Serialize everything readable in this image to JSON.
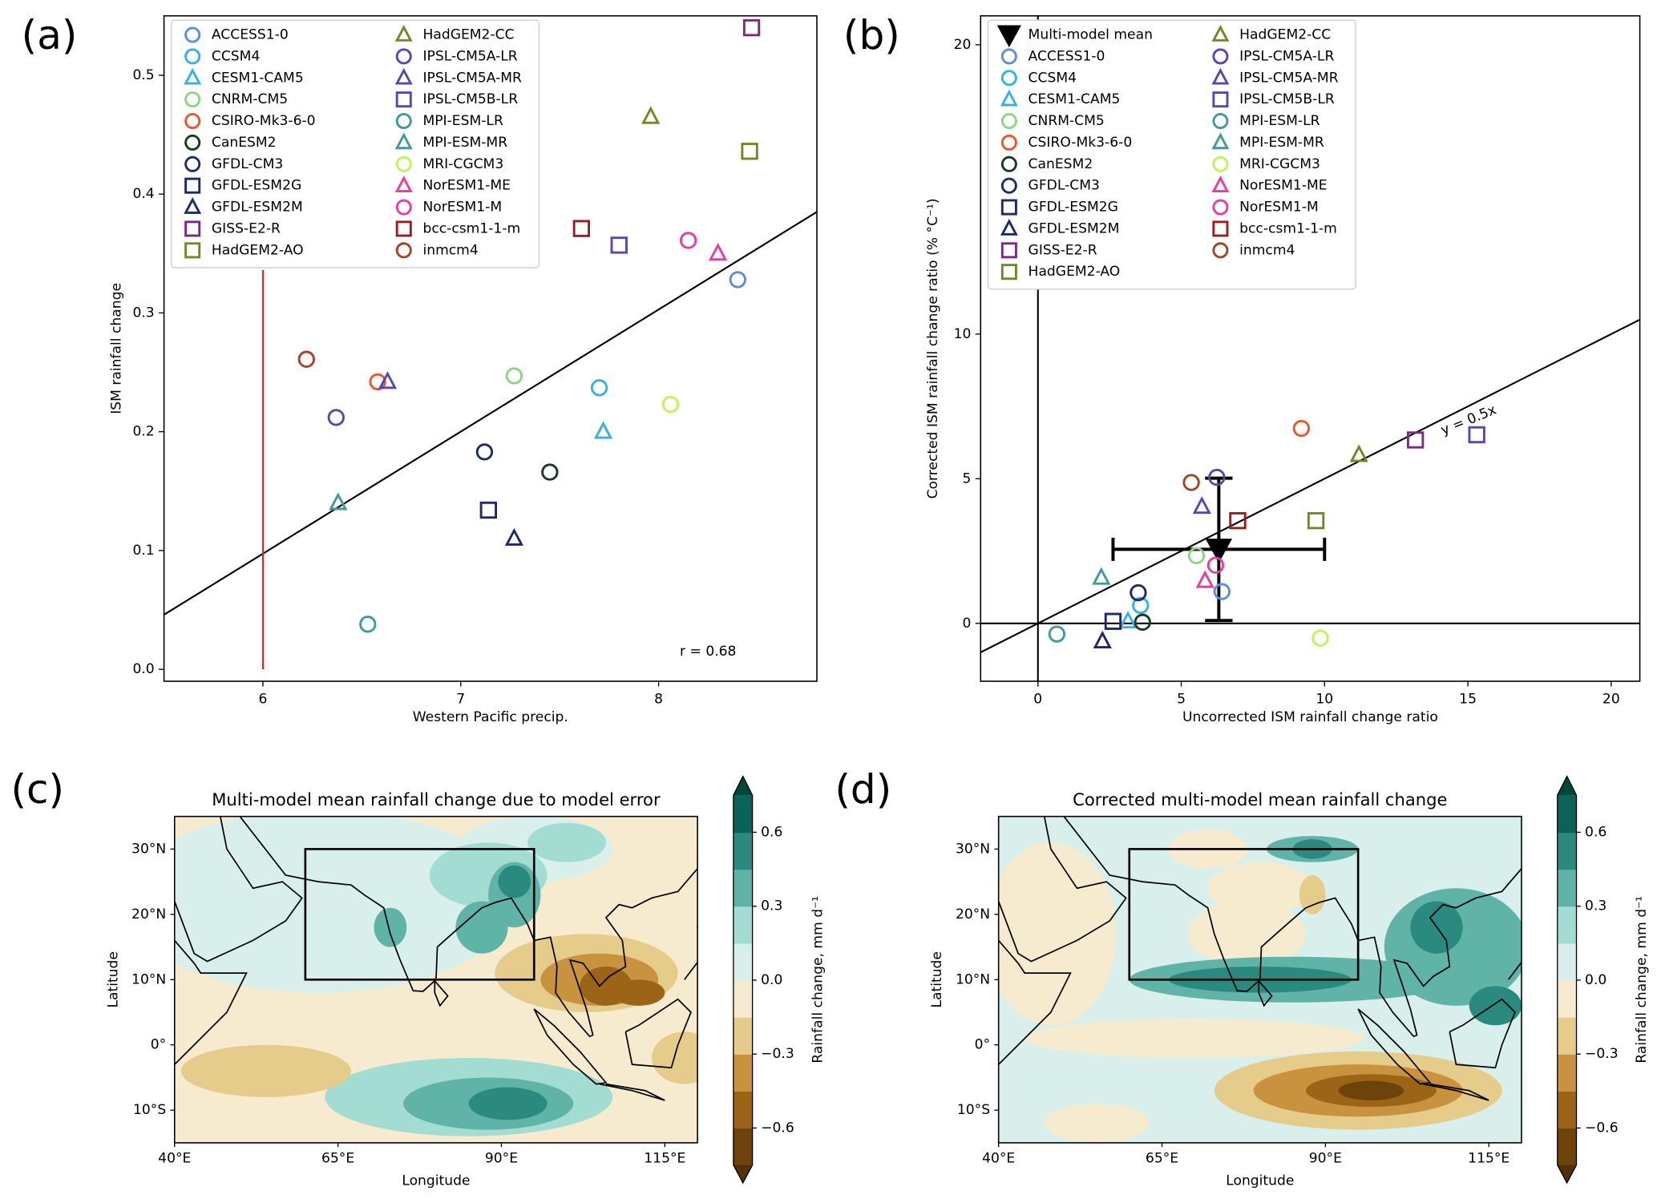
{
  "chart_data": [
    {
      "type": "scatter",
      "panel_label": "(a)",
      "xlabel": "Western Pacific precip.",
      "ylabel": "ISM rainfall change",
      "xlim": [
        5.5,
        8.8
      ],
      "ylim": [
        -0.01,
        0.55
      ],
      "xticks": [
        6,
        7,
        8
      ],
      "yticks": [
        {
          "value": 0,
          "label": "0.0"
        },
        0.1,
        0.2,
        0.3,
        0.4,
        0.5
      ],
      "legend": "upper left",
      "annotation": "r = 0.68",
      "fit_line": {
        "x": [
          5.5,
          8.8
        ],
        "values": [
          0.046,
          0.385
        ],
        "color": "#000000"
      },
      "vline": {
        "x": 6,
        "values": [
          0,
          0.336
        ],
        "color": "#e3241b"
      },
      "series": [
        {
          "name": "ACCESS1-0",
          "color": "#5b8dd9",
          "marker": "o",
          "x": [
            8.4
          ],
          "values": [
            0.328
          ]
        },
        {
          "name": "CCSM4",
          "color": "#33b2e6",
          "marker": "o",
          "x": [
            7.7
          ],
          "values": [
            0.237
          ]
        },
        {
          "name": "CESM1-CAM5",
          "color": "#33b2e6",
          "marker": "^",
          "x": [
            7.72
          ],
          "values": [
            0.2
          ]
        },
        {
          "name": "CNRM-CM5",
          "color": "#8dd67f",
          "marker": "o",
          "x": [
            7.27
          ],
          "values": [
            0.247
          ]
        },
        {
          "name": "CSIRO-Mk3-6-0",
          "color": "#ec5528",
          "marker": "o",
          "x": [
            6.58
          ],
          "values": [
            0.242
          ]
        },
        {
          "name": "CanESM2",
          "color": "#173a23",
          "marker": "o",
          "x": [
            7.45
          ],
          "values": [
            0.166
          ]
        },
        {
          "name": "GFDL-CM3",
          "color": "#1c2a6b",
          "marker": "o",
          "x": [
            7.12
          ],
          "values": [
            0.183
          ]
        },
        {
          "name": "GFDL-ESM2G",
          "color": "#1c2a6b",
          "marker": "s",
          "x": [
            7.14
          ],
          "values": [
            0.134
          ]
        },
        {
          "name": "GFDL-ESM2M",
          "color": "#1c2a6b",
          "marker": "^",
          "x": [
            7.27
          ],
          "values": [
            0.11
          ]
        },
        {
          "name": "GISS-E2-R",
          "color": "#7a2a80",
          "marker": "s",
          "x": [
            8.47
          ],
          "values": [
            0.54
          ]
        },
        {
          "name": "HadGEM2-AO",
          "color": "#6e8a23",
          "marker": "s",
          "x": [
            8.46
          ],
          "values": [
            0.436
          ]
        },
        {
          "name": "HadGEM2-CC",
          "color": "#6e8a23",
          "marker": "^",
          "x": [
            7.96
          ],
          "values": [
            0.465
          ]
        },
        {
          "name": "IPSL-CM5A-LR",
          "color": "#5a45b4",
          "marker": "o",
          "x": [
            6.37
          ],
          "values": [
            0.212
          ]
        },
        {
          "name": "IPSL-CM5A-MR",
          "color": "#5a45b4",
          "marker": "^",
          "x": [
            6.63
          ],
          "values": [
            0.242
          ]
        },
        {
          "name": "IPSL-CM5B-LR",
          "color": "#5a45b4",
          "marker": "s",
          "x": [
            7.8
          ],
          "values": [
            0.357
          ]
        },
        {
          "name": "MPI-ESM-LR",
          "color": "#3f9a98",
          "marker": "o",
          "x": [
            6.53
          ],
          "values": [
            0.038
          ]
        },
        {
          "name": "MPI-ESM-MR",
          "color": "#3f9a98",
          "marker": "^",
          "x": [
            6.38
          ],
          "values": [
            0.14
          ]
        },
        {
          "name": "MRI-CGCM3",
          "color": "#bff55b",
          "marker": "o",
          "x": [
            8.06
          ],
          "values": [
            0.223
          ]
        },
        {
          "name": "NorESM1-ME",
          "color": "#ec3aa6",
          "marker": "^",
          "x": [
            8.3
          ],
          "values": [
            0.35
          ]
        },
        {
          "name": "NorESM1-M",
          "color": "#ec3aa6",
          "marker": "o",
          "x": [
            8.15
          ],
          "values": [
            0.361
          ]
        },
        {
          "name": "bcc-csm1-1-m",
          "color": "#9b1c22",
          "marker": "s",
          "x": [
            7.61
          ],
          "values": [
            0.371
          ]
        },
        {
          "name": "inmcm4",
          "color": "#a3432a",
          "marker": "o",
          "x": [
            6.22
          ],
          "values": [
            0.261
          ]
        }
      ]
    },
    {
      "type": "scatter",
      "panel_label": "(b)",
      "xlabel": "Uncorrected ISM rainfall change ratio",
      "ylabel": "Corrected ISM rainfall change ratio (% °C⁻¹)",
      "xlim": [
        -2,
        21
      ],
      "ylim": [
        -2,
        21
      ],
      "xticks": [
        0,
        5,
        10,
        15,
        20
      ],
      "yticks": [
        0,
        5,
        10,
        20
      ],
      "legend": "upper left",
      "annotation": "y = 0.5x",
      "axhline": 0,
      "axvline": 0,
      "fit_line": {
        "x": [
          -2,
          21
        ],
        "values": [
          -1,
          10.5
        ],
        "color": "#000000"
      },
      "series": [
        {
          "name": "Multi-model mean",
          "color": "#000000",
          "marker": "v",
          "x": [
            6.31
          ],
          "values": [
            2.56
          ],
          "xerr": [
            3.69
          ],
          "yerr": [
            2.46
          ]
        },
        {
          "name": "ACCESS1-0",
          "color": "#5b8dd9",
          "marker": "o",
          "x": [
            6.42
          ],
          "values": [
            1.1
          ]
        },
        {
          "name": "CCSM4",
          "color": "#33b2e6",
          "marker": "o",
          "x": [
            3.58
          ],
          "values": [
            0.62
          ]
        },
        {
          "name": "CESM1-CAM5",
          "color": "#33b2e6",
          "marker": "^",
          "x": [
            3.14
          ],
          "values": [
            0.07
          ]
        },
        {
          "name": "CNRM-CM5",
          "color": "#8dd67f",
          "marker": "o",
          "x": [
            5.53
          ],
          "values": [
            2.34
          ]
        },
        {
          "name": "CSIRO-Mk3-6-0",
          "color": "#ec5528",
          "marker": "o",
          "x": [
            9.19
          ],
          "values": [
            6.74
          ]
        },
        {
          "name": "CanESM2",
          "color": "#173a23",
          "marker": "o",
          "x": [
            3.65
          ],
          "values": [
            0.04
          ]
        },
        {
          "name": "GFDL-CM3",
          "color": "#1c2a6b",
          "marker": "o",
          "x": [
            3.5
          ],
          "values": [
            1.06
          ]
        },
        {
          "name": "GFDL-ESM2G",
          "color": "#1c2a6b",
          "marker": "s",
          "x": [
            2.62
          ],
          "values": [
            0.07
          ]
        },
        {
          "name": "GFDL-ESM2M",
          "color": "#1c2a6b",
          "marker": "^",
          "x": [
            2.25
          ],
          "values": [
            -0.62
          ]
        },
        {
          "name": "GISS-E2-R",
          "color": "#7a2a80",
          "marker": "s",
          "x": [
            13.17
          ],
          "values": [
            6.34
          ]
        },
        {
          "name": "HadGEM2-AO",
          "color": "#6e8a23",
          "marker": "s",
          "x": [
            9.7
          ],
          "values": [
            3.55
          ]
        },
        {
          "name": "HadGEM2-CC",
          "color": "#6e8a23",
          "marker": "^",
          "x": [
            11.2
          ],
          "values": [
            5.82
          ]
        },
        {
          "name": "IPSL-CM5A-LR",
          "color": "#5a45b4",
          "marker": "o",
          "x": [
            6.24
          ],
          "values": [
            5.05
          ]
        },
        {
          "name": "IPSL-CM5A-MR",
          "color": "#5a45b4",
          "marker": "^",
          "x": [
            5.72
          ],
          "values": [
            4.03
          ]
        },
        {
          "name": "IPSL-CM5B-LR",
          "color": "#5a45b4",
          "marker": "s",
          "x": [
            15.31
          ],
          "values": [
            6.52
          ]
        },
        {
          "name": "MPI-ESM-LR",
          "color": "#3f9a98",
          "marker": "o",
          "x": [
            0.66
          ],
          "values": [
            -0.37
          ]
        },
        {
          "name": "MPI-ESM-MR",
          "color": "#3f9a98",
          "marker": "^",
          "x": [
            2.21
          ],
          "values": [
            1.58
          ]
        },
        {
          "name": "MRI-CGCM3",
          "color": "#bff55b",
          "marker": "o",
          "x": [
            9.85
          ],
          "values": [
            -0.51
          ]
        },
        {
          "name": "NorESM1-ME",
          "color": "#ec3aa6",
          "marker": "^",
          "x": [
            5.83
          ],
          "values": [
            1.47
          ]
        },
        {
          "name": "NorESM1-M",
          "color": "#ec3aa6",
          "marker": "o",
          "x": [
            6.2
          ],
          "values": [
            2.01
          ]
        },
        {
          "name": "bcc-csm1-1-m",
          "color": "#9b1c22",
          "marker": "s",
          "x": [
            6.97
          ],
          "values": [
            3.55
          ]
        },
        {
          "name": "inmcm4",
          "color": "#a3432a",
          "marker": "o",
          "x": [
            5.35
          ],
          "values": [
            4.87
          ]
        }
      ]
    },
    {
      "type": "map",
      "panel_label": "(c)",
      "title": "Multi-model mean rainfall change due to model error",
      "xlabel": "Longitude",
      "ylabel": "Latitude",
      "xlim": [
        40,
        120
      ],
      "ylim": [
        -15,
        35
      ],
      "xticks": [
        {
          "value": 40,
          "label": "40°E"
        },
        {
          "value": 65,
          "label": "65°E"
        },
        {
          "value": 90,
          "label": "90°E"
        },
        {
          "value": 115,
          "label": "115°E"
        }
      ],
      "yticks": [
        {
          "value": 30,
          "label": "30°N"
        },
        {
          "value": 20,
          "label": "20°N"
        },
        {
          "value": 10,
          "label": "10°N"
        },
        {
          "value": 0,
          "label": "0°"
        },
        {
          "value": -10,
          "label": "10°S"
        }
      ],
      "box": {
        "lon": [
          60,
          95
        ],
        "lat": [
          10,
          30
        ]
      },
      "colorbar": {
        "label": "Rainfall change, mm d⁻¹",
        "clim": [
          -0.75,
          0.75
        ],
        "ticks": [
          {
            "value": -0.6,
            "label": "−0.6"
          },
          {
            "value": -0.3,
            "label": "−0.3"
          },
          {
            "value": 0,
            "label": "0.0"
          },
          0.3,
          0.6
        ],
        "colors": [
          "#6d430a",
          "#9c6416",
          "#c8923e",
          "#e6cc8a",
          "#f7ebcf",
          "#d8efeb",
          "#a3dcd2",
          "#5fb3a7",
          "#2a8a7f",
          "#0b6357"
        ],
        "extend_colors": [
          "#543005",
          "#00463a"
        ]
      }
    },
    {
      "type": "map",
      "panel_label": "(d)",
      "title": "Corrected multi-model mean rainfall change",
      "xlabel": "Longitude",
      "ylabel": "Latitude",
      "xlim": [
        40,
        120
      ],
      "ylim": [
        -15,
        35
      ],
      "xticks": [
        {
          "value": 40,
          "label": "40°E"
        },
        {
          "value": 65,
          "label": "65°E"
        },
        {
          "value": 90,
          "label": "90°E"
        },
        {
          "value": 115,
          "label": "115°E"
        }
      ],
      "yticks": [
        {
          "value": 30,
          "label": "30°N"
        },
        {
          "value": 20,
          "label": "20°N"
        },
        {
          "value": 10,
          "label": "10°N"
        },
        {
          "value": 0,
          "label": "0°"
        },
        {
          "value": -10,
          "label": "10°S"
        }
      ],
      "box": {
        "lon": [
          60,
          95
        ],
        "lat": [
          10,
          30
        ]
      },
      "colorbar": {
        "label": "Rainfall change, mm d⁻¹",
        "clim": [
          -0.75,
          0.75
        ],
        "ticks": [
          {
            "value": -0.6,
            "label": "−0.6"
          },
          {
            "value": -0.3,
            "label": "−0.3"
          },
          {
            "value": 0,
            "label": "0.0"
          },
          0.3,
          0.6
        ],
        "colors": [
          "#6d430a",
          "#9c6416",
          "#c8923e",
          "#e6cc8a",
          "#f7ebcf",
          "#d8efeb",
          "#a3dcd2",
          "#5fb3a7",
          "#2a8a7f",
          "#0b6357"
        ],
        "extend_colors": [
          "#543005",
          "#00463a"
        ]
      }
    }
  ]
}
